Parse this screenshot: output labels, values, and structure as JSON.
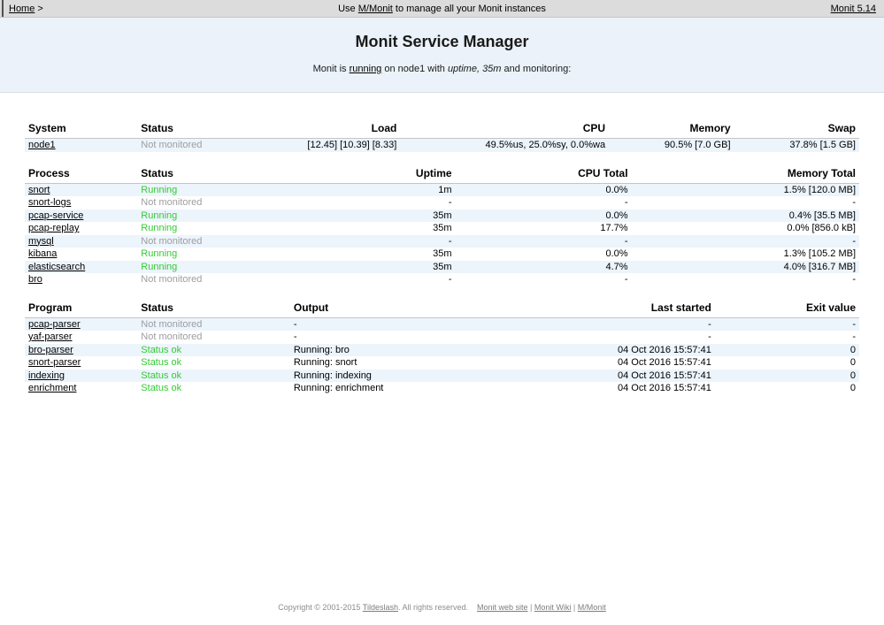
{
  "topbar": {
    "home_label": "Home",
    "home_suffix": " >",
    "center_prefix": "Use ",
    "center_link": "M/Monit",
    "center_suffix": " to manage all your Monit instances",
    "version_label": "Monit 5.14"
  },
  "header": {
    "title": "Monit Service Manager",
    "subtitle_prefix": "Monit is ",
    "status_link": "running",
    "subtitle_middle": " on node1 with ",
    "subtitle_italic": "uptime, 35m",
    "subtitle_suffix": " and monitoring:"
  },
  "colors": {
    "status_ok_green": "#33cc33",
    "unmonitored_gray": "#9e9e9e",
    "row_stripe_blue": "#ecf4fc",
    "header_background": "#ebf2f9",
    "topbar_background": "#dcdcdc"
  },
  "tables": {
    "system": {
      "headers": [
        "System",
        "Status",
        "Load",
        "CPU",
        "Memory",
        "Swap"
      ],
      "rows": [
        {
          "name": "node1",
          "status": "Not monitored",
          "status_type": "unmonitored",
          "load": "[12.45] [10.39] [8.33]",
          "cpu": "49.5%us, 25.0%sy, 0.0%wa",
          "memory": "90.5% [7.0 GB]",
          "swap": "37.8% [1.5 GB]"
        }
      ]
    },
    "process": {
      "headers": [
        "Process",
        "Status",
        "Uptime",
        "CPU Total",
        "Memory Total"
      ],
      "rows": [
        {
          "name": "snort",
          "status": "Running",
          "status_type": "ok",
          "uptime": "1m",
          "cpu": "0.0%",
          "memory": "1.5% [120.0 MB]"
        },
        {
          "name": "snort-logs",
          "status": "Not monitored",
          "status_type": "unmonitored",
          "uptime": "-",
          "cpu": "-",
          "memory": "-"
        },
        {
          "name": "pcap-service",
          "status": "Running",
          "status_type": "ok",
          "uptime": "35m",
          "cpu": "0.0%",
          "memory": "0.4% [35.5 MB]"
        },
        {
          "name": "pcap-replay",
          "status": "Running",
          "status_type": "ok",
          "uptime": "35m",
          "cpu": "17.7%",
          "memory": "0.0% [856.0 kB]"
        },
        {
          "name": "mysql",
          "status": "Not monitored",
          "status_type": "unmonitored",
          "uptime": "-",
          "cpu": "-",
          "memory": "-"
        },
        {
          "name": "kibana",
          "status": "Running",
          "status_type": "ok",
          "uptime": "35m",
          "cpu": "0.0%",
          "memory": "1.3% [105.2 MB]"
        },
        {
          "name": "elasticsearch",
          "status": "Running",
          "status_type": "ok",
          "uptime": "35m",
          "cpu": "4.7%",
          "memory": "4.0% [316.7 MB]"
        },
        {
          "name": "bro",
          "status": "Not monitored",
          "status_type": "unmonitored",
          "uptime": "-",
          "cpu": "-",
          "memory": "-"
        }
      ]
    },
    "program": {
      "headers": [
        "Program",
        "Status",
        "Output",
        "Last started",
        "Exit value"
      ],
      "rows": [
        {
          "name": "pcap-parser",
          "status": "Not monitored",
          "status_type": "unmonitored",
          "output": "-",
          "last_started": "-",
          "exit_value": "-"
        },
        {
          "name": "yaf-parser",
          "status": "Not monitored",
          "status_type": "unmonitored",
          "output": "-",
          "last_started": "-",
          "exit_value": "-"
        },
        {
          "name": "bro-parser",
          "status": "Status ok",
          "status_type": "ok",
          "output": "Running: bro",
          "last_started": "04 Oct 2016 15:57:41",
          "exit_value": "0"
        },
        {
          "name": "snort-parser",
          "status": "Status ok",
          "status_type": "ok",
          "output": "Running: snort",
          "last_started": "04 Oct 2016 15:57:41",
          "exit_value": "0"
        },
        {
          "name": "indexing",
          "status": "Status ok",
          "status_type": "ok",
          "output": "Running: indexing",
          "last_started": "04 Oct 2016 15:57:41",
          "exit_value": "0"
        },
        {
          "name": "enrichment",
          "status": "Status ok",
          "status_type": "ok",
          "output": "Running: enrichment",
          "last_started": "04 Oct 2016 15:57:41",
          "exit_value": "0"
        }
      ]
    }
  },
  "footer": {
    "copyright_prefix": "Copyright © 2001-2015 ",
    "tildeslash_link": "Tildeslash",
    "copyright_suffix": ". All rights reserved.",
    "link1": "Monit web site",
    "link2": "Monit Wiki",
    "link3": "M/Monit",
    "separator": " | "
  }
}
